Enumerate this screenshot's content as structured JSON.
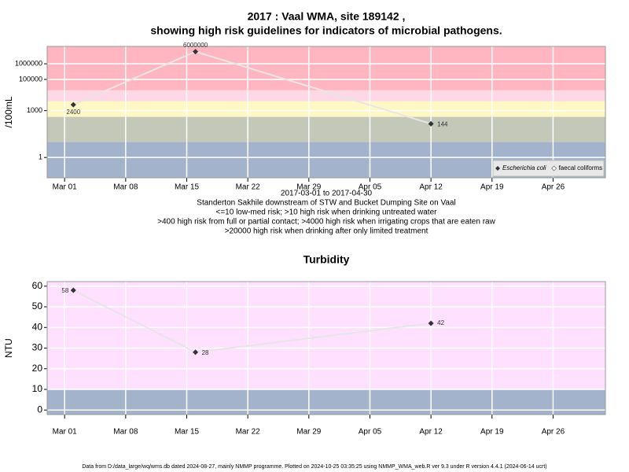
{
  "chart_data": [
    {
      "type": "line",
      "title": [
        "2017 : Vaal WMA, site 189142 ,",
        "showing high risk guidelines for indicators of microbial pathogens."
      ],
      "subtitle": [
        "2017-03-01 to 2017-04-30",
        "Standerton Sakhile downstream of STW and Bucket Dumping Site on Vaal",
        "<=10 low-med risk; >10 high risk when drinking untreated water",
        ">400 high risk from full or partial contact; >4000 high risk when irrigating crops that are eaten raw",
        ">20000 high risk when drinking after only limited treatment"
      ],
      "y_label": "/100mL",
      "log_y": true,
      "x": [
        "2017-03-02",
        "2017-03-16",
        "2017-04-12"
      ],
      "series": [
        {
          "name": "Escherichia coli",
          "color": "#333333",
          "values": [
            2400,
            6000000,
            144
          ]
        },
        {
          "name": "faecal coliforms",
          "color": "#ffffff",
          "values": [
            null,
            null,
            null
          ]
        }
      ],
      "xlim": [
        "2017-02-27",
        "2017-05-02"
      ],
      "xticks": [
        {
          "value": "2017-03-01",
          "label": "Mar 01"
        },
        {
          "value": "2017-03-08",
          "label": "Mar 08"
        },
        {
          "value": "2017-03-15",
          "label": "Mar 15"
        },
        {
          "value": "2017-03-22",
          "label": "Mar 22"
        },
        {
          "value": "2017-03-29",
          "label": "Mar 29"
        },
        {
          "value": "2017-04-05",
          "label": "Apr 05"
        },
        {
          "value": "2017-04-12",
          "label": "Apr 12"
        },
        {
          "value": "2017-04-19",
          "label": "Apr 19"
        },
        {
          "value": "2017-04-26",
          "label": "Apr 26"
        }
      ],
      "ylim": [
        0.05,
        13000000
      ],
      "yticks": [
        1,
        1000,
        100000,
        1000000
      ],
      "thresholds": [
        10,
        400,
        4000,
        20000
      ],
      "band_colors": [
        "#a3b3cc",
        "#c4c8b8",
        "#fff7c4",
        "#ffd8e6",
        "#ffb6c1"
      ],
      "grid": true,
      "legend": "bottom-right"
    },
    {
      "type": "line",
      "title": [
        "Turbidity"
      ],
      "y_label": "NTU",
      "log_y": false,
      "x": [
        "2017-03-02",
        "2017-03-16",
        "2017-04-12"
      ],
      "series": [
        {
          "color": "#333333",
          "values": [
            58,
            28,
            42
          ]
        }
      ],
      "xlim": [
        "2017-02-27",
        "2017-05-02"
      ],
      "xticks": [
        {
          "value": "2017-03-01",
          "label": "Mar 01"
        },
        {
          "value": "2017-03-08",
          "label": "Mar 08"
        },
        {
          "value": "2017-03-15",
          "label": "Mar 15"
        },
        {
          "value": "2017-03-22",
          "label": "Mar 22"
        },
        {
          "value": "2017-03-29",
          "label": "Mar 29"
        },
        {
          "value": "2017-04-05",
          "label": "Apr 05"
        },
        {
          "value": "2017-04-12",
          "label": "Apr 12"
        },
        {
          "value": "2017-04-19",
          "label": "Apr 19"
        },
        {
          "value": "2017-04-26",
          "label": "Apr 26"
        }
      ],
      "ylim": [
        -2.2,
        62.2
      ],
      "yticks": [
        0,
        10,
        20,
        30,
        40,
        50,
        60
      ],
      "thresholds": [
        10
      ],
      "band_colors": [
        "#a3b3cc",
        "#ffe0ff"
      ],
      "grid": true
    }
  ],
  "footer": "Data from D:/data_large/wq/wms.db dated 2024-08-27, mainly NMMP programme. Plotted on 2024-10-25 03:35:25 using NMMP_WMA_web.R ver 9.3 under R version 4.4.1 (2024-06-14 ucrt)"
}
